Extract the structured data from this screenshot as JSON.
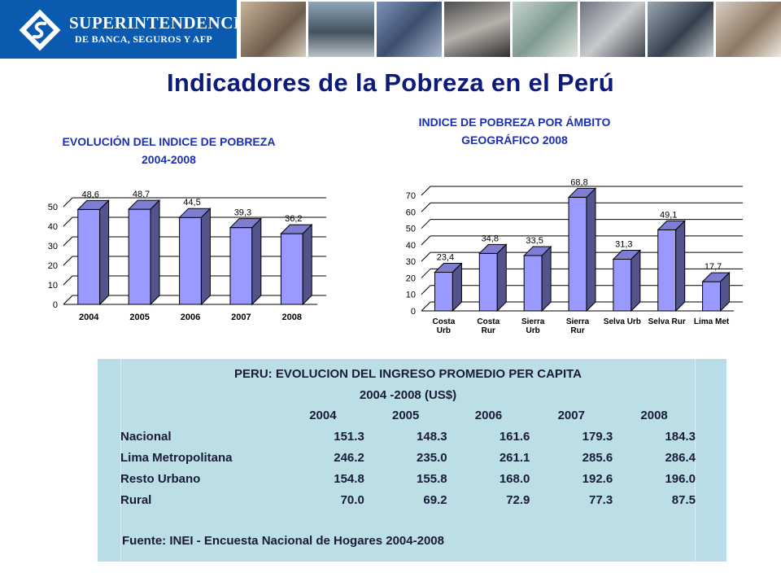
{
  "header": {
    "logo_line1": "SUPERINTENDENCIA",
    "logo_line2": "DE BANCA, SEGUROS Y AFP",
    "brand_color": "#0a5bb0"
  },
  "page_title": "Indicadores de la Pobreza en el Perú",
  "chart_data": [
    {
      "type": "bar",
      "title_line1": "EVOLUCIÓN DEL INDICE DE POBREZA",
      "title_line2": "2004-2008",
      "categories": [
        "2004",
        "2005",
        "2006",
        "2007",
        "2008"
      ],
      "values": [
        48.6,
        48.7,
        44.5,
        39.3,
        36.2
      ],
      "value_labels": [
        "48,6",
        "48,7",
        "44,5",
        "39,3",
        "36,2"
      ],
      "ylim": [
        0,
        50
      ],
      "yticks": [
        0,
        10,
        20,
        30,
        40,
        50
      ],
      "grid": true,
      "bar_color": "#9999ff",
      "xlabel": "",
      "ylabel": ""
    },
    {
      "type": "bar",
      "title_line1": "INDICE DE POBREZA POR ÁMBITO",
      "title_line2": "GEOGRÁFICO 2008",
      "categories": [
        [
          "Costa",
          "Urb"
        ],
        [
          "Costa",
          "Rur"
        ],
        [
          "Sierra",
          "Urb"
        ],
        [
          "Sierra",
          "Rur"
        ],
        [
          "Selva Urb"
        ],
        [
          "Selva Rur"
        ],
        [
          "Lima Met"
        ]
      ],
      "values": [
        23.4,
        34.8,
        33.5,
        68.8,
        31.3,
        49.1,
        17.7
      ],
      "value_labels": [
        "23,4",
        "34,8",
        "33,5",
        "68,8",
        "31,3",
        "49,1",
        "17,7"
      ],
      "ylim": [
        0,
        70
      ],
      "yticks": [
        0,
        10,
        20,
        30,
        40,
        50,
        60,
        70
      ],
      "grid": true,
      "bar_color": "#9999ff",
      "xlabel": "",
      "ylabel": ""
    }
  ],
  "income_table": {
    "title_line1": "PERU: EVOLUCION DEL INGRESO PROMEDIO PER CAPITA",
    "title_line2": "2004 -2008 (US$)",
    "years": [
      "2004",
      "2005",
      "2006",
      "2007",
      "2008"
    ],
    "rows": [
      {
        "label": "Nacional",
        "values": [
          "151.3",
          "148.3",
          "161.6",
          "179.3",
          "184.3"
        ]
      },
      {
        "label": "Lima Metropolitana",
        "values": [
          "246.2",
          "235.0",
          "261.1",
          "285.6",
          "286.4"
        ]
      },
      {
        "label": "Resto Urbano",
        "values": [
          "154.8",
          "155.8",
          "168.0",
          "192.6",
          "196.0"
        ]
      },
      {
        "label": "Rural",
        "values": [
          "70.0",
          "69.2",
          "72.9",
          "77.3",
          "87.5"
        ]
      }
    ],
    "source": "Fuente: INEI - Encuesta Nacional de Hogares 2004-2008",
    "panel_color": "#b9dde6"
  }
}
